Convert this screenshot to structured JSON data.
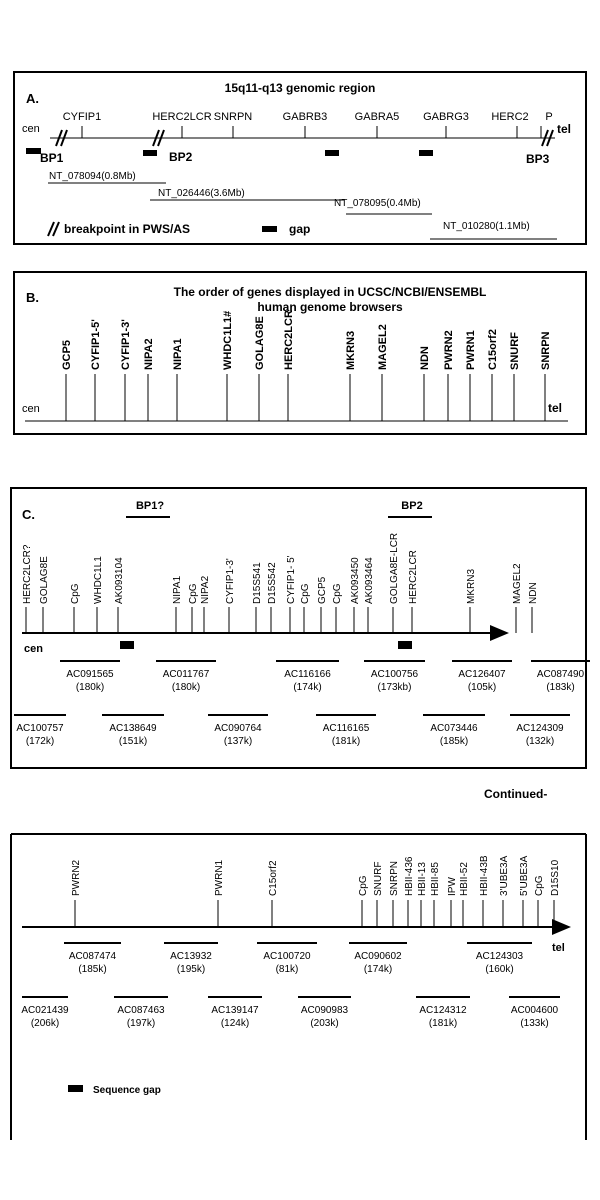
{
  "panelA": {
    "letter": "A.",
    "title": "15q11-q13 genomic region",
    "cen": "cen",
    "tel": "tel",
    "genes": [
      "CYFIP1",
      "HERC2LCR",
      "SNRPN",
      "GABRB3",
      "GABRA5",
      "GABRG3",
      "HERC2",
      "P"
    ],
    "breakpoints": [
      "BP1",
      "BP2",
      "BP3"
    ],
    "contigs": [
      "NT_078094(0.8Mb)",
      "NT_026446(3.6Mb)",
      "NT_078095(0.4Mb)",
      "NT_010280(1.1Mb)"
    ],
    "legend_breakpoint": "breakpoint in PWS/AS",
    "legend_gap": "gap"
  },
  "panelB": {
    "letter": "B.",
    "title_line1": "The order of genes displayed in UCSC/NCBI/ENSEMBL",
    "title_line2": "human genome browsers",
    "cen": "cen",
    "tel": "tel",
    "genes": [
      "GCP5",
      "CYFIP1-5'",
      "CYFIP1-3'",
      "NIPA2",
      "NIPA1",
      "WHDC1L1#",
      "GOLAG8E",
      "HERC2LCR",
      "MKRN3",
      "MAGEL2",
      "NDN",
      "PWRN2",
      "PWRN1",
      "C15orf2",
      "SNURF",
      "SNRPN"
    ]
  },
  "panelC": {
    "letter": "C.",
    "bp1_label": "BP1?",
    "bp2_label": "BP2",
    "cen": "cen",
    "markers": [
      "HERC2LCR?",
      "GOLAG8E",
      "CpG",
      "WHDC1L1",
      "AK093104",
      "NIPA1",
      "CpG",
      "NIPA2",
      "CYFIP1-3'",
      "D15S541",
      "D15S542",
      "CYFIP1- 5'",
      "CpG",
      "GCP5",
      "CpG",
      "AK093450",
      "AK093464",
      "GOLGA8E-LCR",
      "HERC2LCR",
      "MKRN3",
      "MAGEL2",
      "NDN"
    ],
    "clones": [
      {
        "name": "AC091565",
        "size": "(180k)"
      },
      {
        "name": "AC011767",
        "size": "(180k)"
      },
      {
        "name": "AC116166",
        "size": "(174k)"
      },
      {
        "name": "AC100756",
        "size": "(173kb)"
      },
      {
        "name": "AC126407",
        "size": "(105k)"
      },
      {
        "name": "AC087490",
        "size": "(183k)"
      },
      {
        "name": "AC100757",
        "size": "(172k)"
      },
      {
        "name": "AC138649",
        "size": "(151k)"
      },
      {
        "name": "AC090764",
        "size": "(137k)"
      },
      {
        "name": "AC116165",
        "size": "(181k)"
      },
      {
        "name": "AC073446",
        "size": "(185k)"
      },
      {
        "name": "AC124309",
        "size": "(132k)"
      }
    ]
  },
  "continued": "Continued-",
  "panelD": {
    "tel": "tel",
    "markers": [
      "PWRN2",
      "PWRN1",
      "C15orf2",
      "CpG",
      "SNURF",
      "SNRPN",
      "HBII-436",
      "HBII-13",
      "HBII-85",
      "IPW",
      "HBII-52",
      "HBII-43B",
      "3'UBE3A",
      "5'UBE3A",
      "CpG",
      "D15S10"
    ],
    "clones": [
      {
        "name": "AC087474",
        "size": "(185k)"
      },
      {
        "name": "AC13932",
        "size": "(195k)"
      },
      {
        "name": "AC100720",
        "size": "(81k)"
      },
      {
        "name": "AC090602",
        "size": "(174k)"
      },
      {
        "name": "AC124303",
        "size": "(160k)"
      },
      {
        "name": "AC021439",
        "size": "(206k)"
      },
      {
        "name": "AC087463",
        "size": "(197k)"
      },
      {
        "name": "AC139147",
        "size": "(124k)"
      },
      {
        "name": "AC090983",
        "size": "(203k)"
      },
      {
        "name": "AC124312",
        "size": "(181k)"
      },
      {
        "name": "AC004600",
        "size": "(133k)"
      }
    ],
    "legend_gap": "Sequence gap"
  }
}
